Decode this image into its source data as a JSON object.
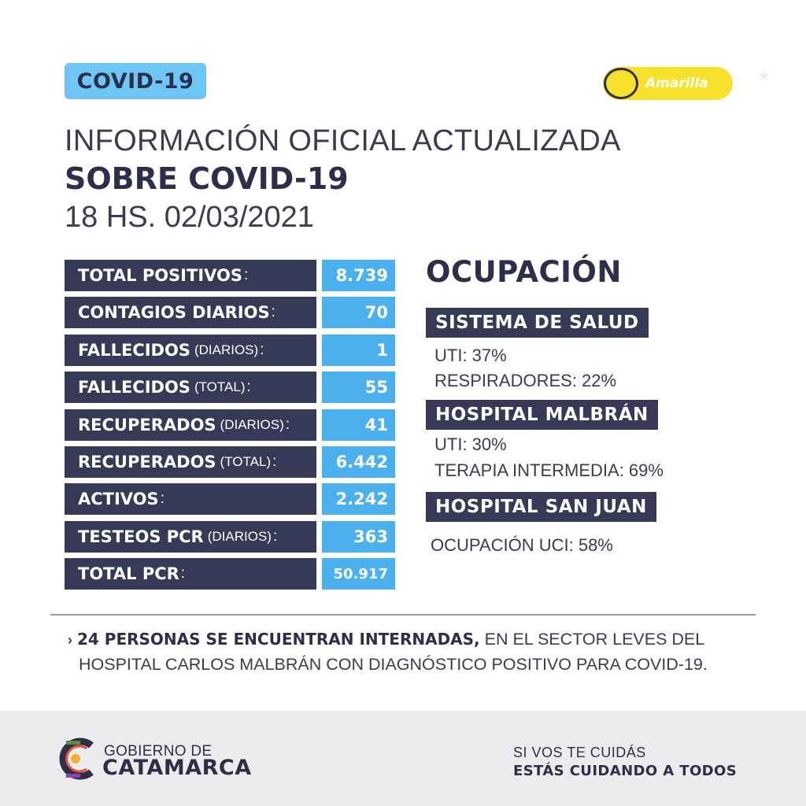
{
  "badge": "COVID-19",
  "status_toggle": {
    "label": "Amarilla",
    "color": "#f7e12a"
  },
  "headline": {
    "line1": "INFORMACIÓN OFICIAL ACTUALIZADA",
    "line2": "SOBRE COVID-19",
    "line3": "18 HS. 02/03/2021"
  },
  "stats": [
    {
      "label": "TOTAL POSITIVOS",
      "sub": "",
      "value": "8.739"
    },
    {
      "label": "CONTAGIOS DIARIOS",
      "sub": "",
      "value": "70"
    },
    {
      "label": "FALLECIDOS",
      "sub": "(DIARIOS)",
      "value": "1"
    },
    {
      "label": "FALLECIDOS",
      "sub": "(TOTAL)",
      "value": "55"
    },
    {
      "label": "RECUPERADOS",
      "sub": "(DIARIOS)",
      "value": "41"
    },
    {
      "label": "RECUPERADOS",
      "sub": "(TOTAL)",
      "value": "6.442"
    },
    {
      "label": "ACTIVOS",
      "sub": "",
      "value": "2.242"
    },
    {
      "label": "TESTEOS PCR",
      "sub": "(DIARIOS)",
      "value": "363"
    },
    {
      "label": "TOTAL PCR",
      "sub": "",
      "value": "50.917"
    }
  ],
  "ocupacion": {
    "title": "OCUPACIÓN",
    "sections": [
      {
        "heading": "SISTEMA DE SALUD",
        "lines": [
          "UTI: 37%",
          "RESPIRADORES: 22%"
        ]
      },
      {
        "heading": "HOSPITAL MALBRÁN",
        "lines": [
          "UTI: 30%",
          "TERAPIA INTERMEDIA: 69%"
        ]
      },
      {
        "heading": "HOSPITAL SAN JUAN",
        "lines": [
          "OCUPACIÓN UCI: 58%"
        ]
      }
    ]
  },
  "note": {
    "arrow": "›",
    "strong": "24 PERSONAS SE ENCUENTRAN INTERNADAS,",
    "rest": " EN EL SECTOR LEVES DEL",
    "line2": "HOSPITAL CARLOS MALBRÁN CON DIAGNÓSTICO POSITIVO PARA COVID-19."
  },
  "footer": {
    "logo_top": "GOBIERNO DE",
    "logo_bottom": "CATAMARCA",
    "slogan_1": "SI VOS TE CUIDÁS",
    "slogan_2": "ESTÁS CUIDANDO A TODOS"
  },
  "colors": {
    "dark_navy": "#363a57",
    "accent_blue": "#4ab1ee",
    "badge_blue": "#6ec6f5",
    "status_yellow": "#f7e12a"
  }
}
